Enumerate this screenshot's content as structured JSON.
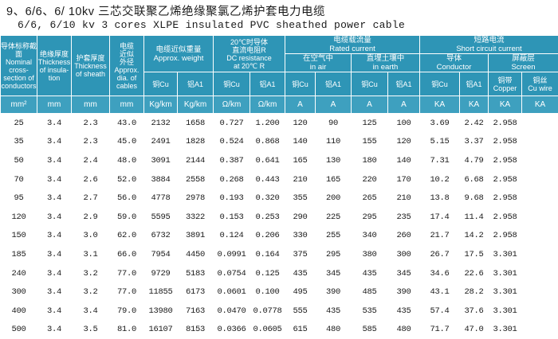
{
  "title": {
    "cn": "9、6/6、6/ 10kv  三芯交联聚乙烯绝缘聚氯乙烯护套电力电缆",
    "en": "6/6, 6/10 kv 3 cores XLPE insulated PVC sheathed power cable"
  },
  "headers": {
    "section": [
      "导体标称截面",
      "Nominal",
      "cross-",
      "section of",
      "conductors"
    ],
    "insul": [
      "绝缘厚度",
      "Thickness",
      "of insula-",
      "tion"
    ],
    "sheath": [
      "护套厚度",
      "Thickness",
      "of sheath"
    ],
    "diam": [
      "电缆",
      "近似",
      "外径",
      "Approx.",
      "dia. of",
      "cables"
    ],
    "weight": [
      "电缆近似重量",
      "Approx. weight"
    ],
    "weight_cu": "铜Cu",
    "weight_al": "铝A1",
    "resist": [
      "20℃时导体",
      "直流电阻R",
      "DC resistance",
      "at 20℃ R"
    ],
    "resist_cu": "铜Cu",
    "resist_al": "铝A1",
    "current": [
      "电缆载流量",
      "Rated current"
    ],
    "air": [
      "在空气中",
      "in air"
    ],
    "earth": [
      "直埋土壤中",
      "in earth"
    ],
    "air_cu": "铜Cu",
    "air_al": "铝A1",
    "earth_cu": "铜Cu",
    "earth_al": "铝A1",
    "short": [
      "短路电流",
      "Short circuit current"
    ],
    "conductor": [
      "导体",
      "Conductor"
    ],
    "screen": [
      "屏蔽层",
      "Screen"
    ],
    "sc_cu": "铜Cu",
    "sc_al": "铝A1",
    "copper_tape": [
      "铜带",
      "Copper"
    ],
    "cu_wire": [
      "铜丝",
      "Cu wire"
    ]
  },
  "units": [
    "mm²",
    "mm",
    "mm",
    "mm",
    "Kg/km",
    "Kg/km",
    "Ω/km",
    "Ω/km",
    "A",
    "A",
    "A",
    "A",
    "KA",
    "KA",
    "KA",
    "KA"
  ],
  "rows": [
    [
      "25",
      "3.4",
      "2.3",
      "43.0",
      "2132",
      "1658",
      "0.727",
      "1.200",
      "120",
      "90",
      "125",
      "100",
      "3.69",
      "2.42",
      "2.958",
      ""
    ],
    [
      "35",
      "3.4",
      "2.3",
      "45.0",
      "2491",
      "1828",
      "0.524",
      "0.868",
      "140",
      "110",
      "155",
      "120",
      "5.15",
      "3.37",
      "2.958",
      ""
    ],
    [
      "50",
      "3.4",
      "2.4",
      "48.0",
      "3091",
      "2144",
      "0.387",
      "0.641",
      "165",
      "130",
      "180",
      "140",
      "7.31",
      "4.79",
      "2.958",
      ""
    ],
    [
      "70",
      "3.4",
      "2.6",
      "52.0",
      "3884",
      "2558",
      "0.268",
      "0.443",
      "210",
      "165",
      "220",
      "170",
      "10.2",
      "6.68",
      "2.958",
      ""
    ],
    [
      "95",
      "3.4",
      "2.7",
      "56.0",
      "4778",
      "2978",
      "0.193",
      "0.320",
      "355",
      "200",
      "265",
      "210",
      "13.8",
      "9.68",
      "2.958",
      ""
    ],
    [
      "120",
      "3.4",
      "2.9",
      "59.0",
      "5595",
      "3322",
      "0.153",
      "0.253",
      "290",
      "225",
      "295",
      "235",
      "17.4",
      "11.4",
      "2.958",
      ""
    ],
    [
      "150",
      "3.4",
      "3.0",
      "62.0",
      "6732",
      "3891",
      "0.124",
      "0.206",
      "330",
      "255",
      "340",
      "260",
      "21.7",
      "14.2",
      "2.958",
      ""
    ],
    [
      "185",
      "3.4",
      "3.1",
      "66.0",
      "7954",
      "4450",
      "0.0991",
      "0.164",
      "375",
      "295",
      "380",
      "300",
      "26.7",
      "17.5",
      "3.301",
      ""
    ],
    [
      "240",
      "3.4",
      "3.2",
      "77.0",
      "9729",
      "5183",
      "0.0754",
      "0.125",
      "435",
      "345",
      "435",
      "345",
      "34.6",
      "22.6",
      "3.301",
      ""
    ],
    [
      "300",
      "3.4",
      "3.2",
      "77.0",
      "11855",
      "6173",
      "0.0601",
      "0.100",
      "495",
      "390",
      "485",
      "390",
      "43.1",
      "28.2",
      "3.301",
      ""
    ],
    [
      "400",
      "3.4",
      "3.4",
      "79.0",
      "13980",
      "7163",
      "0.0470",
      "0.0778",
      "555",
      "435",
      "535",
      "435",
      "57.4",
      "37.6",
      "3.301",
      ""
    ],
    [
      "500",
      "3.4",
      "3.5",
      "81.0",
      "16107",
      "8153",
      "0.0366",
      "0.0605",
      "615",
      "480",
      "585",
      "480",
      "71.7",
      "47.0",
      "3.301",
      ""
    ]
  ],
  "colors": {
    "header_bg": "#2e95b6",
    "row_alt": "#ffffff"
  }
}
